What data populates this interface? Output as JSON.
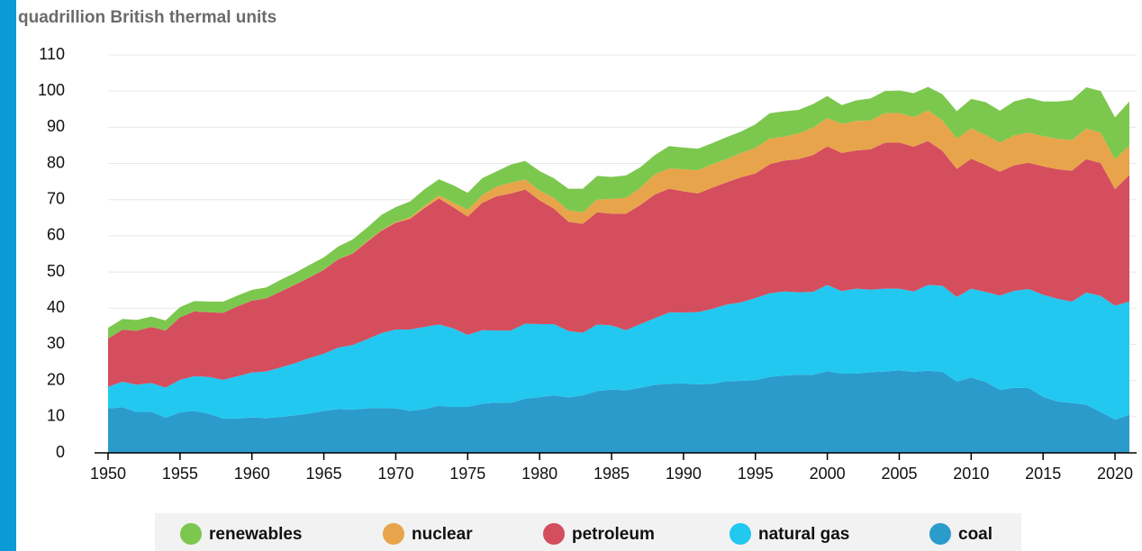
{
  "chart_data": {
    "type": "stacked_area",
    "title": "quadrillion British thermal units",
    "x": [
      1950,
      1951,
      1952,
      1953,
      1954,
      1955,
      1956,
      1957,
      1958,
      1959,
      1960,
      1961,
      1962,
      1963,
      1964,
      1965,
      1966,
      1967,
      1968,
      1969,
      1970,
      1971,
      1972,
      1973,
      1974,
      1975,
      1976,
      1977,
      1978,
      1979,
      1980,
      1981,
      1982,
      1983,
      1984,
      1985,
      1986,
      1987,
      1988,
      1989,
      1990,
      1991,
      1992,
      1993,
      1994,
      1995,
      1996,
      1997,
      1998,
      1999,
      2000,
      2001,
      2002,
      2003,
      2004,
      2005,
      2006,
      2007,
      2008,
      2009,
      2010,
      2011,
      2012,
      2013,
      2014,
      2015,
      2016,
      2017,
      2018,
      2019,
      2020,
      2021
    ],
    "series": [
      {
        "name": "renewables",
        "color": "#7cc84e",
        "values": [
          2.98,
          2.96,
          2.98,
          2.86,
          2.8,
          2.78,
          2.85,
          2.9,
          3.1,
          3.0,
          2.93,
          3.0,
          3.2,
          3.2,
          3.4,
          3.4,
          3.5,
          3.8,
          3.8,
          4.2,
          4.1,
          4.4,
          4.6,
          4.4,
          4.8,
          4.7,
          4.7,
          4.2,
          5.0,
          5.1,
          5.4,
          5.4,
          6.0,
          6.5,
          6.5,
          6.1,
          6.2,
          5.7,
          5.3,
          6.2,
          6.0,
          6.0,
          5.8,
          6.1,
          5.9,
          6.5,
          7.0,
          7.0,
          6.5,
          6.5,
          6.1,
          5.2,
          5.7,
          6.1,
          6.1,
          6.2,
          6.6,
          6.5,
          7.2,
          7.6,
          8.1,
          9.1,
          8.8,
          9.4,
          9.6,
          9.6,
          10.3,
          11.1,
          11.4,
          11.5,
          11.6,
          12.2
        ]
      },
      {
        "name": "nuclear",
        "color": "#e8a44a",
        "values": [
          0,
          0,
          0,
          0,
          0,
          0,
          0,
          0,
          0,
          0,
          0.01,
          0.02,
          0.03,
          0.03,
          0.04,
          0.04,
          0.06,
          0.09,
          0.14,
          0.15,
          0.24,
          0.41,
          0.58,
          0.91,
          1.27,
          1.9,
          2.1,
          2.7,
          3.0,
          2.8,
          2.7,
          3.0,
          3.1,
          3.2,
          3.55,
          4.08,
          4.38,
          4.75,
          5.59,
          5.6,
          6.1,
          6.4,
          6.5,
          6.4,
          6.7,
          7.1,
          7.1,
          6.6,
          7.1,
          7.6,
          7.86,
          8.03,
          8.14,
          7.96,
          8.22,
          8.16,
          8.21,
          8.46,
          8.43,
          8.36,
          8.43,
          8.27,
          8.06,
          8.27,
          8.33,
          8.34,
          8.43,
          8.42,
          8.44,
          8.45,
          8.25,
          8.13
        ]
      },
      {
        "name": "petroleum",
        "color": "#d44e5e",
        "values": [
          13.3,
          14.4,
          14.9,
          15.5,
          15.8,
          17.3,
          17.9,
          17.9,
          18.5,
          19.3,
          19.9,
          20.2,
          21.0,
          21.7,
          22.3,
          23.2,
          24.4,
          25.3,
          26.9,
          28.3,
          29.5,
          30.6,
          32.9,
          34.8,
          33.5,
          32.7,
          35.2,
          37.1,
          37.9,
          37.1,
          34.2,
          31.9,
          30.2,
          30.1,
          31.0,
          30.9,
          32.2,
          32.9,
          34.2,
          34.2,
          33.5,
          32.8,
          33.5,
          33.8,
          34.6,
          34.4,
          35.7,
          36.2,
          36.8,
          37.8,
          38.3,
          38.2,
          38.2,
          38.8,
          40.3,
          40.4,
          40.0,
          39.8,
          37.3,
          35.4,
          35.9,
          35.1,
          34.2,
          34.7,
          34.9,
          35.5,
          35.8,
          36.2,
          36.9,
          36.7,
          32.2,
          35.0
        ]
      },
      {
        "name": "natural gas",
        "color": "#22c8f0",
        "values": [
          5.97,
          7.05,
          7.55,
          7.91,
          8.33,
          9.0,
          9.6,
          10.2,
          10.7,
          11.7,
          12.4,
          12.9,
          13.7,
          14.4,
          15.3,
          15.8,
          17.0,
          17.9,
          19.1,
          20.7,
          21.8,
          22.5,
          22.7,
          22.5,
          21.7,
          19.9,
          20.3,
          19.9,
          20.0,
          20.7,
          20.2,
          19.7,
          18.4,
          17.3,
          18.4,
          17.7,
          16.6,
          17.6,
          18.4,
          19.7,
          19.6,
          20.0,
          20.7,
          21.2,
          21.7,
          22.7,
          23.1,
          23.2,
          22.8,
          22.9,
          23.8,
          22.8,
          23.5,
          22.8,
          22.9,
          22.6,
          22.2,
          23.7,
          23.8,
          23.4,
          24.6,
          24.9,
          26.1,
          26.8,
          27.4,
          28.2,
          28.4,
          28.0,
          31.0,
          32.1,
          31.5,
          31.3
        ]
      },
      {
        "name": "coal",
        "color": "#2b9bcc",
        "values": [
          12.3,
          12.6,
          11.3,
          11.4,
          9.7,
          11.2,
          11.6,
          10.8,
          9.5,
          9.5,
          9.8,
          9.6,
          9.9,
          10.4,
          10.9,
          11.6,
          12.1,
          11.9,
          12.3,
          12.4,
          12.3,
          11.6,
          12.1,
          13.0,
          12.7,
          12.7,
          13.6,
          13.9,
          13.8,
          15.0,
          15.4,
          15.9,
          15.3,
          15.9,
          17.1,
          17.5,
          17.3,
          18.0,
          18.8,
          19.1,
          19.2,
          18.9,
          19.1,
          19.8,
          19.9,
          20.1,
          21.0,
          21.4,
          21.6,
          21.6,
          22.6,
          21.9,
          21.9,
          22.3,
          22.5,
          22.8,
          22.4,
          22.7,
          22.4,
          19.7,
          20.8,
          19.6,
          17.4,
          18.0,
          17.9,
          15.5,
          14.2,
          13.8,
          13.3,
          11.3,
          9.2,
          10.5
        ]
      }
    ],
    "xlim": [
      1950,
      2021.5
    ],
    "xticks": [
      1950,
      1955,
      1960,
      1965,
      1970,
      1975,
      1980,
      1985,
      1990,
      1995,
      2000,
      2005,
      2010,
      2015,
      2020
    ],
    "ylim": [
      0,
      110
    ],
    "yticks": [
      0,
      10,
      20,
      30,
      40,
      50,
      60,
      70,
      80,
      90,
      100,
      110
    ],
    "grid": true,
    "legend": "bottom"
  }
}
